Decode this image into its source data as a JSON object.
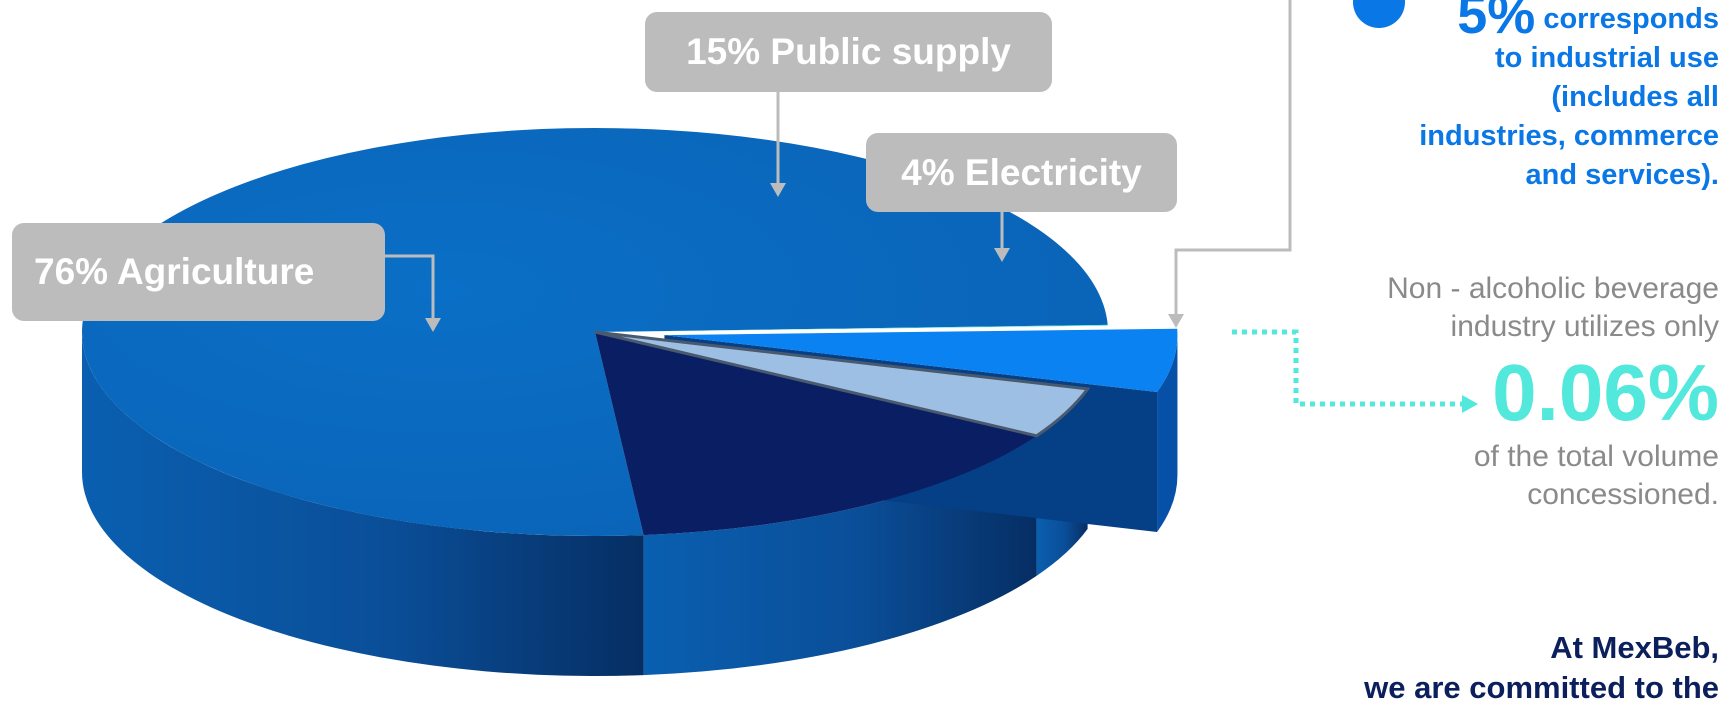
{
  "chart_data": {
    "type": "pie",
    "slices": [
      {
        "label": "Agriculture",
        "value": 76,
        "text": "76% Agriculture",
        "color": "#0a6bbf"
      },
      {
        "label": "Public supply",
        "value": 15,
        "text": "15%  Public supply",
        "color": "#0a1f63"
      },
      {
        "label": "Electricity",
        "value": 4,
        "text": "4%  Electricity",
        "color": "#9dbfe3"
      },
      {
        "label": "Industrial use",
        "value": 5,
        "color": "#0a82f2"
      },
      {
        "label": "Non - alcoholic beverage industry",
        "value": 0.06,
        "color": "#52e8dc"
      }
    ]
  },
  "annotations": {
    "industrial": {
      "pct": "5%",
      "line1": "corresponds",
      "line2": "to industrial use",
      "line3": "(includes all",
      "line4": "industries, commerce",
      "line5": "and services)."
    },
    "beverage": {
      "line1": "Non - alcoholic beverage",
      "line2": "industry utilizes only",
      "pct": "0.06%",
      "line3": "of the total volume",
      "line4": "concessioned."
    },
    "mexbeb": {
      "line1": "At MexBeb,",
      "line2": "we are committed to the"
    }
  }
}
